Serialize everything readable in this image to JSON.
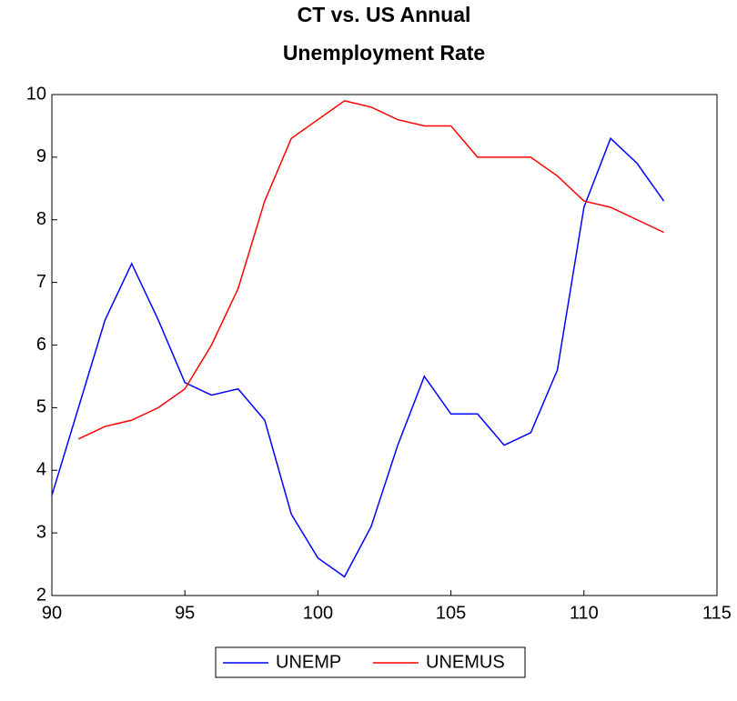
{
  "chart_data": {
    "type": "line",
    "title": [
      "CT vs. US Annual",
      "Unemployment Rate"
    ],
    "x": [
      90,
      91,
      92,
      93,
      94,
      95,
      96,
      97,
      98,
      99,
      100,
      101,
      102,
      103,
      104,
      105,
      106,
      107,
      108,
      109,
      110,
      111,
      112,
      113
    ],
    "series": [
      {
        "name": "UNEMP",
        "color": "#0000ff",
        "values": [
          3.6,
          5.0,
          6.4,
          7.3,
          6.4,
          5.4,
          5.2,
          5.3,
          4.8,
          3.3,
          2.6,
          2.3,
          3.1,
          4.4,
          5.5,
          4.9,
          4.9,
          4.4,
          4.6,
          5.6,
          8.2,
          9.3,
          8.9,
          8.3
        ]
      },
      {
        "name": "UNEMUS",
        "color": "#ff0000",
        "values": [
          null,
          4.5,
          4.7,
          4.8,
          5.0,
          5.3,
          6.0,
          6.9,
          8.3,
          9.3,
          9.6,
          9.9,
          9.8,
          9.6,
          9.5,
          9.5,
          9.0,
          9.0,
          9.0,
          8.7,
          8.3,
          8.2,
          8.0,
          7.8
        ]
      }
    ],
    "xlim": [
      90,
      115
    ],
    "xticks": [
      90,
      95,
      100,
      105,
      110,
      115
    ],
    "ylim": [
      2,
      10
    ],
    "yticks": [
      2,
      3,
      4,
      5,
      6,
      7,
      8,
      9,
      10
    ],
    "grid": false,
    "legend": "bottom"
  }
}
